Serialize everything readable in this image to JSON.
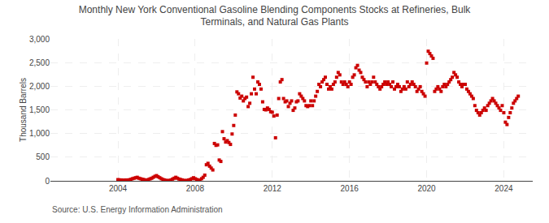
{
  "chart_data": {
    "type": "scatter",
    "title": "Monthly New York Conventional Gasoline Blending Components Stocks at Refineries, Bulk\nTerminals, and Natural Gas Plants",
    "ylabel": "Thousand Barrels",
    "annotations": [
      "Source: U.S. Energy Information Administration"
    ],
    "color": "#cc0000",
    "marker": "square",
    "grid": true,
    "xlim": [
      2000.5,
      2025.5
    ],
    "xticks": [
      2004,
      2008,
      2012,
      2016,
      2020,
      2024
    ],
    "ylim": [
      0,
      3000
    ],
    "yticks": [
      0,
      500,
      {
        "value": 1000,
        "label": "1,000"
      },
      {
        "value": 1500,
        "label": "1,500"
      },
      {
        "value": 2000,
        "label": "2,000"
      },
      {
        "value": 2500,
        "label": "2,500"
      },
      {
        "value": 3000,
        "label": "3,000"
      }
    ],
    "x": [
      2004.0,
      2004.083,
      2004.167,
      2004.25,
      2004.333,
      2004.417,
      2004.5,
      2004.583,
      2004.667,
      2004.75,
      2004.833,
      2004.917,
      2005.0,
      2005.083,
      2005.167,
      2005.25,
      2005.333,
      2005.417,
      2005.5,
      2005.583,
      2005.667,
      2005.75,
      2005.833,
      2005.917,
      2006.0,
      2006.083,
      2006.167,
      2006.25,
      2006.333,
      2006.417,
      2006.5,
      2006.583,
      2006.667,
      2006.75,
      2006.833,
      2006.917,
      2007.0,
      2007.083,
      2007.167,
      2007.25,
      2007.333,
      2007.417,
      2007.5,
      2007.583,
      2007.667,
      2007.75,
      2007.833,
      2007.917,
      2008.0,
      2008.083,
      2008.167,
      2008.25,
      2008.333,
      2008.417,
      2008.5,
      2008.583,
      2008.667,
      2008.75,
      2008.833,
      2008.917,
      2009.0,
      2009.083,
      2009.167,
      2009.25,
      2009.333,
      2009.417,
      2009.5,
      2009.583,
      2009.667,
      2009.75,
      2009.833,
      2009.917,
      2010.0,
      2010.083,
      2010.167,
      2010.25,
      2010.333,
      2010.417,
      2010.5,
      2010.583,
      2010.667,
      2010.75,
      2010.833,
      2010.917,
      2011.0,
      2011.083,
      2011.167,
      2011.25,
      2011.333,
      2011.417,
      2011.5,
      2011.583,
      2011.667,
      2011.75,
      2011.833,
      2011.917,
      2012.0,
      2012.083,
      2012.167,
      2012.25,
      2012.333,
      2012.417,
      2012.5,
      2012.583,
      2012.667,
      2012.75,
      2012.833,
      2012.917,
      2013.0,
      2013.083,
      2013.167,
      2013.25,
      2013.333,
      2013.417,
      2013.5,
      2013.583,
      2013.667,
      2013.75,
      2013.833,
      2013.917,
      2014.0,
      2014.083,
      2014.167,
      2014.25,
      2014.333,
      2014.417,
      2014.5,
      2014.583,
      2014.667,
      2014.75,
      2014.833,
      2014.917,
      2015.0,
      2015.083,
      2015.167,
      2015.25,
      2015.333,
      2015.417,
      2015.5,
      2015.583,
      2015.667,
      2015.75,
      2015.833,
      2015.917,
      2016.0,
      2016.083,
      2016.167,
      2016.25,
      2016.333,
      2016.417,
      2016.5,
      2016.583,
      2016.667,
      2016.75,
      2016.833,
      2016.917,
      2017.0,
      2017.083,
      2017.167,
      2017.25,
      2017.333,
      2017.417,
      2017.5,
      2017.583,
      2017.667,
      2017.75,
      2017.833,
      2017.917,
      2018.0,
      2018.083,
      2018.167,
      2018.25,
      2018.333,
      2018.417,
      2018.5,
      2018.583,
      2018.667,
      2018.75,
      2018.833,
      2018.917,
      2019.0,
      2019.083,
      2019.167,
      2019.25,
      2019.333,
      2019.417,
      2019.5,
      2019.583,
      2019.667,
      2019.75,
      2019.833,
      2019.917,
      2020.0,
      2020.083,
      2020.167,
      2020.25,
      2020.333,
      2020.417,
      2020.5,
      2020.583,
      2020.667,
      2020.75,
      2020.833,
      2020.917,
      2021.0,
      2021.083,
      2021.167,
      2021.25,
      2021.333,
      2021.417,
      2021.5,
      2021.583,
      2021.667,
      2021.75,
      2021.833,
      2021.917,
      2022.0,
      2022.083,
      2022.167,
      2022.25,
      2022.333,
      2022.417,
      2022.5,
      2022.583,
      2022.667,
      2022.75,
      2022.833,
      2022.917,
      2023.0,
      2023.083,
      2023.167,
      2023.25,
      2023.333,
      2023.417,
      2023.5,
      2023.583,
      2023.667,
      2023.75,
      2023.833,
      2023.917,
      2024.0,
      2024.083,
      2024.167,
      2024.25,
      2024.333,
      2024.417,
      2024.5,
      2024.583,
      2024.667,
      2024.75
    ],
    "values": [
      25,
      20,
      18,
      15,
      12,
      18,
      14,
      22,
      30,
      45,
      55,
      65,
      75,
      55,
      45,
      35,
      28,
      18,
      14,
      28,
      42,
      55,
      75,
      95,
      110,
      85,
      65,
      45,
      28,
      18,
      8,
      5,
      8,
      18,
      38,
      55,
      75,
      55,
      38,
      28,
      18,
      8,
      5,
      8,
      18,
      28,
      45,
      65,
      45,
      28,
      18,
      8,
      45,
      75,
      120,
      340,
      370,
      310,
      270,
      230,
      790,
      750,
      760,
      440,
      410,
      1040,
      890,
      820,
      850,
      810,
      770,
      990,
      1170,
      1390,
      1880,
      1840,
      1750,
      1790,
      1690,
      1740,
      1770,
      1570,
      1640,
      1840,
      2190,
      1940,
      1840,
      2090,
      2040,
      1940,
      1670,
      1510,
      1500,
      1540,
      1510,
      1460,
      1450,
      1370,
      910,
      1390,
      1740,
      2090,
      2140,
      1740,
      1670,
      1690,
      1570,
      1640,
      1690,
      1490,
      1540,
      1670,
      1690,
      1840,
      1790,
      1740,
      1690,
      1590,
      1570,
      1590,
      1690,
      1590,
      1690,
      1790,
      1890,
      2040,
      1990,
      2090,
      2140,
      2190,
      2040,
      1940,
      1990,
      1940,
      2040,
      2090,
      2190,
      2290,
      2240,
      2090,
      2040,
      2090,
      2040,
      1990,
      2090,
      2040,
      2190,
      2240,
      2390,
      2440,
      2340,
      2290,
      2190,
      2140,
      2090,
      1990,
      2090,
      2040,
      2090,
      2190,
      2090,
      2040,
      1990,
      1940,
      1990,
      2040,
      2090,
      2040,
      2090,
      2040,
      1990,
      2090,
      1940,
      1990,
      2040,
      1990,
      1890,
      1940,
      1990,
      1940,
      2090,
      1990,
      2040,
      2090,
      2040,
      1990,
      1890,
      1940,
      1990,
      1890,
      1840,
      1790,
      2490,
      2740,
      2690,
      2640,
      2590,
      1890,
      1940,
      1990,
      1940,
      1890,
      1990,
      2040,
      1990,
      2040,
      2090,
      2140,
      2190,
      2290,
      2240,
      2190,
      2090,
      2040,
      1990,
      2040,
      2040,
      1940,
      1890,
      1840,
      1790,
      1740,
      1590,
      1490,
      1440,
      1390,
      1440,
      1490,
      1540,
      1490,
      1590,
      1640,
      1690,
      1740,
      1690,
      1640,
      1590,
      1540,
      1490,
      1590,
      1440,
      1240,
      1190,
      1340,
      1440,
      1540,
      1640,
      1690,
      1740,
      1790
    ]
  }
}
